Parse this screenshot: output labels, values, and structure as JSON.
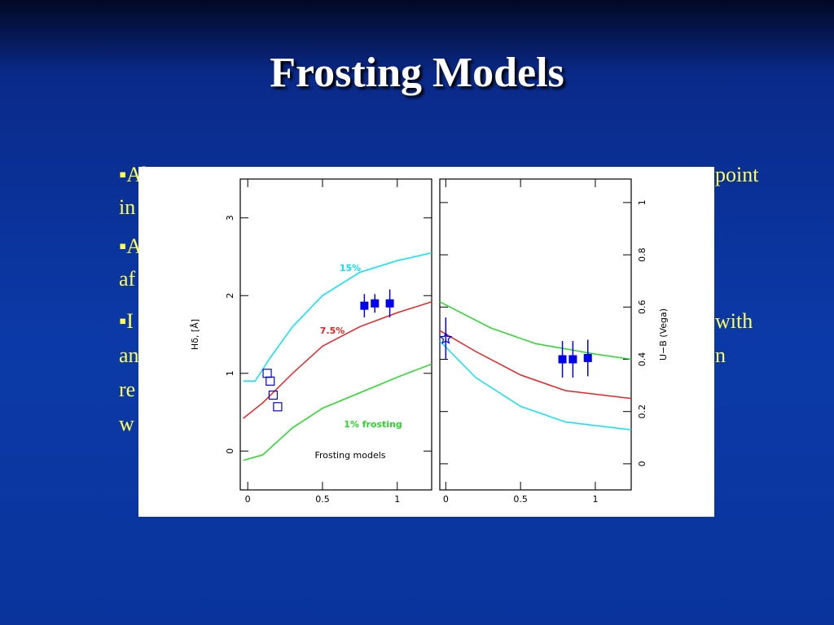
{
  "slide": {
    "title": "Frosting Models",
    "fragments": [
      "▪Al",
      "point",
      "in",
      "▪A",
      "af",
      "▪I",
      "with",
      "an",
      "n",
      "re",
      "w"
    ]
  },
  "chart_data": [
    {
      "type": "line",
      "ylabel": "Hδ, [Å]",
      "xlim": [
        -0.05,
        1.23
      ],
      "ylim": [
        -0.5,
        3.5
      ],
      "xticks": [
        0,
        0.5,
        1
      ],
      "yticks": [
        0,
        1,
        2,
        3
      ],
      "annotations": [
        "Frosting models"
      ],
      "series": [
        {
          "name": "15%",
          "color": "#00e5ff",
          "x": [
            -0.03,
            0.05,
            0.15,
            0.3,
            0.5,
            0.75,
            1.0,
            1.23
          ],
          "y": [
            0.9,
            0.9,
            1.2,
            1.6,
            2.0,
            2.3,
            2.45,
            2.55
          ]
        },
        {
          "name": "7.5%",
          "color": "#ee2222",
          "x": [
            -0.03,
            0.1,
            0.3,
            0.5,
            0.75,
            1.0,
            1.23
          ],
          "y": [
            0.42,
            0.62,
            1.0,
            1.35,
            1.6,
            1.78,
            1.92
          ]
        },
        {
          "name": "1% frosting",
          "color": "#22dd22",
          "x": [
            -0.03,
            0.1,
            0.3,
            0.5,
            0.75,
            1.0,
            1.23
          ],
          "y": [
            -0.12,
            -0.05,
            0.3,
            0.55,
            0.75,
            0.95,
            1.12
          ]
        }
      ],
      "points": [
        {
          "marker": "filled-square",
          "color": "#0000ee",
          "x": [
            0.78,
            0.85,
            0.95
          ],
          "y": [
            1.87,
            1.9,
            1.9
          ],
          "errors": [
            0.15,
            0.12,
            0.18
          ]
        },
        {
          "marker": "open-square",
          "color": "#0000ee",
          "x": [
            0.13,
            0.15,
            0.17,
            0.2
          ],
          "y": [
            1.0,
            0.9,
            0.72,
            0.57
          ]
        }
      ]
    },
    {
      "type": "line",
      "ylabel": "U−B (Vega)",
      "xlim": [
        -0.04,
        1.24
      ],
      "ylim": [
        -0.1,
        1.09
      ],
      "xticks": [
        0,
        0.5,
        1
      ],
      "yticks": [
        0,
        0.2,
        0.4,
        0.6,
        0.8,
        1
      ],
      "annotations": [],
      "series": [
        {
          "color": "#22dd22",
          "x": [
            -0.04,
            0.3,
            0.6,
            1.0,
            1.24
          ],
          "y": [
            0.62,
            0.52,
            0.46,
            0.42,
            0.4
          ]
        },
        {
          "color": "#ee2222",
          "x": [
            -0.04,
            0.2,
            0.5,
            0.8,
            1.24
          ],
          "y": [
            0.51,
            0.43,
            0.34,
            0.28,
            0.25
          ]
        },
        {
          "color": "#00e5ff",
          "x": [
            -0.04,
            0.2,
            0.5,
            0.8,
            1.24
          ],
          "y": [
            0.47,
            0.33,
            0.22,
            0.16,
            0.13
          ]
        }
      ],
      "points": [
        {
          "marker": "filled-square",
          "color": "#0000ee",
          "x": [
            0.78,
            0.85,
            0.95
          ],
          "y": [
            0.4,
            0.4,
            0.405
          ],
          "errors": [
            0.07,
            0.07,
            0.07
          ]
        },
        {
          "marker": "open-star",
          "color": "#0000ee",
          "x": [
            0
          ],
          "y": [
            0.48
          ],
          "errors": [
            0.08
          ]
        }
      ]
    }
  ]
}
